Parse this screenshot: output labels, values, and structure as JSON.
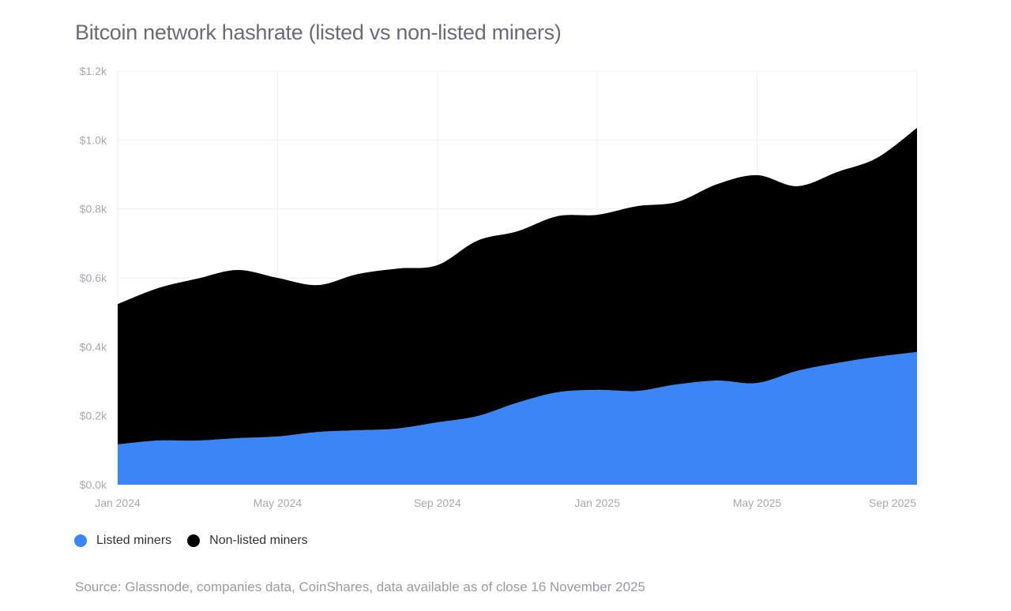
{
  "chart_data": {
    "type": "area",
    "stacked": true,
    "title": "Bitcoin network hashrate (listed vs non-listed miners)",
    "x": [
      "2024-01",
      "2024-02",
      "2024-03",
      "2024-04",
      "2024-05",
      "2024-06",
      "2024-07",
      "2024-08",
      "2024-09",
      "2024-10",
      "2024-11",
      "2024-12",
      "2025-01",
      "2025-02",
      "2025-03",
      "2025-04",
      "2025-05",
      "2025-06",
      "2025-07",
      "2025-08",
      "2025-09"
    ],
    "xticks": [
      "Jan 2024",
      "May 2024",
      "Sep 2024",
      "Jan 2025",
      "May 2025",
      "Sep 2025"
    ],
    "yticks": [
      "$0.0k",
      "$0.2k",
      "$0.4k",
      "$0.6k",
      "$0.8k",
      "$1.0k",
      "$1.2k"
    ],
    "ylim": [
      0,
      1.2
    ],
    "yunit": "k",
    "grid": true,
    "legend_position": "bottom-left",
    "series": [
      {
        "name": "Listed miners",
        "color": "#3b86f7",
        "values": [
          0.117,
          0.128,
          0.128,
          0.135,
          0.14,
          0.153,
          0.158,
          0.163,
          0.181,
          0.199,
          0.238,
          0.268,
          0.275,
          0.272,
          0.291,
          0.302,
          0.295,
          0.33,
          0.353,
          0.371,
          0.385
        ]
      },
      {
        "name": "Non-listed miners",
        "color": "#000000",
        "values": [
          0.407,
          0.442,
          0.47,
          0.488,
          0.46,
          0.426,
          0.453,
          0.464,
          0.456,
          0.509,
          0.497,
          0.511,
          0.508,
          0.536,
          0.529,
          0.57,
          0.603,
          0.536,
          0.554,
          0.577,
          0.65
        ]
      }
    ],
    "source": "Source: Glassnode, companies data, CoinShares, data available as of close 16 November 2025"
  }
}
